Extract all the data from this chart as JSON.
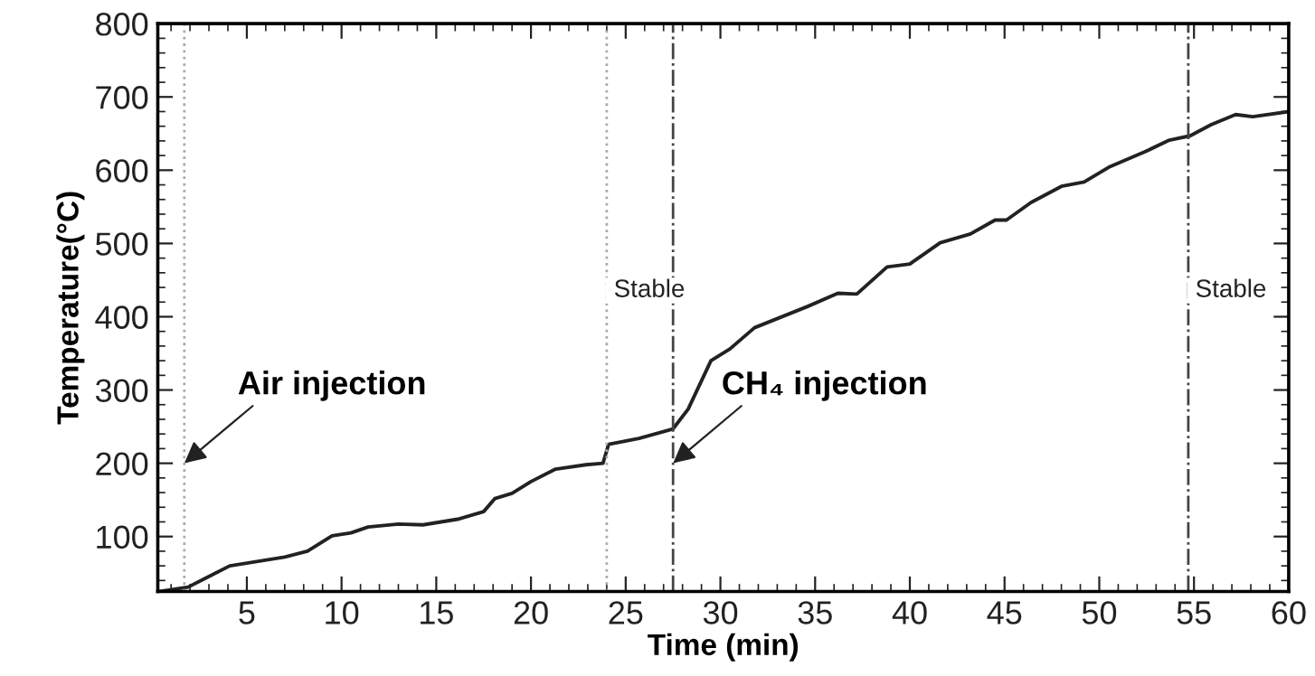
{
  "chart_data": {
    "type": "line",
    "xlabel": "Time (min)",
    "ylabel": "Temperature(°C)",
    "xlim": [
      0.3,
      60
    ],
    "ylim": [
      25,
      800
    ],
    "xticks": [
      5,
      10,
      15,
      20,
      25,
      30,
      35,
      40,
      45,
      50,
      55,
      60
    ],
    "yticks": [
      100,
      200,
      300,
      400,
      500,
      600,
      700,
      800
    ],
    "grid": false,
    "legend": false,
    "marker": "none",
    "line_style": "solid",
    "series": [
      {
        "color": "#222222",
        "x": [
          0.4,
          1.9,
          2.8,
          4.1,
          7.0,
          8.2,
          9.5,
          10.5,
          11.4,
          13.0,
          14.3,
          16.2,
          17.5,
          18.1,
          19.0,
          20.0,
          21.3,
          22.9,
          23.8,
          24.1,
          25.7,
          27.5,
          28.3,
          29.5,
          30.5,
          31.8,
          34.6,
          36.2,
          37.2,
          38.8,
          40.0,
          41.6,
          43.2,
          44.5,
          45.1,
          46.4,
          48.0,
          49.2,
          50.5,
          52.4,
          53.7,
          54.8,
          55.9,
          57.2,
          58.1,
          60.0
        ],
        "values": [
          25,
          31,
          43,
          60,
          72,
          80,
          101,
          105,
          113,
          117,
          116,
          124,
          134,
          152,
          159,
          175,
          192,
          198,
          200,
          226,
          234,
          247,
          274,
          340,
          356,
          385,
          414,
          432,
          431,
          468,
          472,
          501,
          513,
          532,
          532,
          556,
          578,
          584,
          604,
          625,
          641,
          647,
          662,
          676,
          673,
          680
        ]
      }
    ],
    "ref_lines": [
      {
        "axis": "x",
        "value": 1.7,
        "color": "#aaaaaa",
        "line_style": "dotted"
      },
      {
        "axis": "x",
        "value": 24,
        "color": "#aaaaaa",
        "line_style": "dotted",
        "label": "Stable"
      },
      {
        "axis": "x",
        "value": 27.5,
        "color": "#444444",
        "line_style": "dashdot"
      },
      {
        "axis": "x",
        "value": 54.7,
        "color": "#444444",
        "line_style": "dashdot",
        "label": "Stable"
      }
    ],
    "annotations": [
      {
        "text": "Air injection",
        "x": 1.7,
        "y": 200
      },
      {
        "text": "CH₄ injection",
        "x": 27.5,
        "y": 200
      }
    ]
  }
}
